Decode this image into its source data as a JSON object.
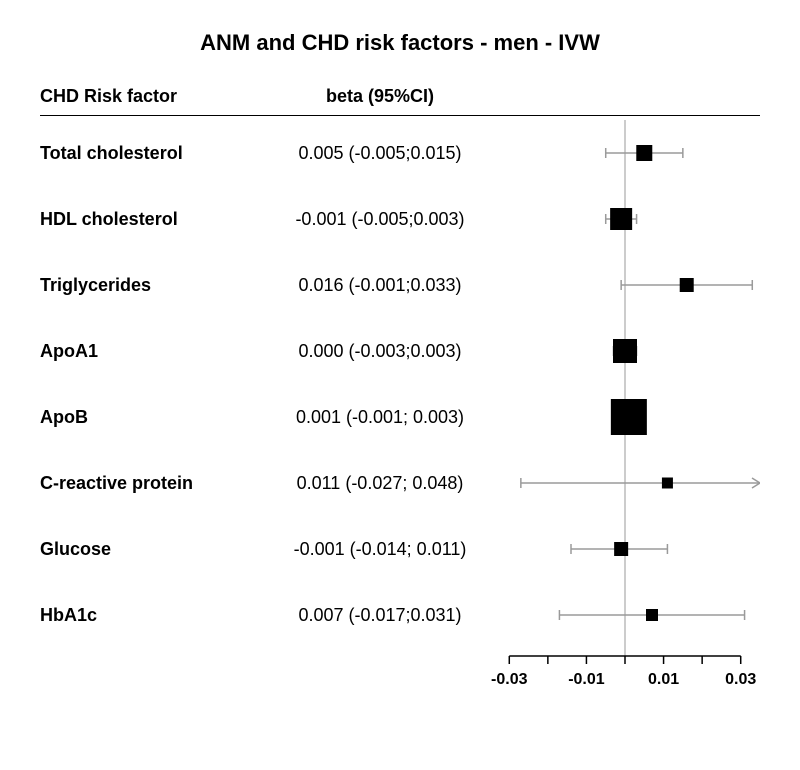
{
  "title": "ANM and CHD risk factors - men - IVW",
  "headers": {
    "factor": "CHD Risk factor",
    "stat": "beta (95%CI)"
  },
  "colors": {
    "background": "#ffffff",
    "text": "#000000",
    "marker": "#000000",
    "whisker": "#9a9a9a",
    "axis": "#000000",
    "refline": "#9a9a9a"
  },
  "plot": {
    "xmin": -0.035,
    "xmax": 0.035,
    "ticks": [
      -0.03,
      -0.02,
      -0.01,
      0,
      0.01,
      0.02,
      0.03
    ],
    "tick_labels": [
      "-0.03",
      "",
      "-0.01",
      "",
      "0.01",
      "",
      "0.03"
    ],
    "ref_x": 0,
    "axis_label_fontsize": 16,
    "marker_min_size": 10,
    "marker_max_size": 36
  },
  "typography": {
    "title_fontsize": 22,
    "header_fontsize": 18,
    "label_fontsize": 18,
    "stat_fontsize": 18
  },
  "rows": [
    {
      "label": "Total cholesterol",
      "stat": "0.005 (-0.005;0.015)",
      "beta": 0.005,
      "lo": -0.005,
      "hi": 0.015,
      "size": 16
    },
    {
      "label": "HDL cholesterol",
      "stat": "-0.001 (-0.005;0.003)",
      "beta": -0.001,
      "lo": -0.005,
      "hi": 0.003,
      "size": 22
    },
    {
      "label": "Triglycerides",
      "stat": "0.016 (-0.001;0.033)",
      "beta": 0.016,
      "lo": -0.001,
      "hi": 0.033,
      "size": 14
    },
    {
      "label": "ApoA1",
      "stat": "0.000 (-0.003;0.003)",
      "beta": 0.0,
      "lo": -0.003,
      "hi": 0.003,
      "size": 24
    },
    {
      "label": "ApoB",
      "stat": "0.001 (-0.001; 0.003)",
      "beta": 0.001,
      "lo": -0.001,
      "hi": 0.003,
      "size": 36
    },
    {
      "label": "C-reactive protein",
      "stat": "0.011 (-0.027; 0.048)",
      "beta": 0.011,
      "lo": -0.027,
      "hi": 0.048,
      "size": 11
    },
    {
      "label": "Glucose",
      "stat": "-0.001 (-0.014; 0.011)",
      "beta": -0.001,
      "lo": -0.014,
      "hi": 0.011,
      "size": 14
    },
    {
      "label": "HbA1c",
      "stat": "0.007 (-0.017;0.031)",
      "beta": 0.007,
      "lo": -0.017,
      "hi": 0.031,
      "size": 12
    }
  ]
}
